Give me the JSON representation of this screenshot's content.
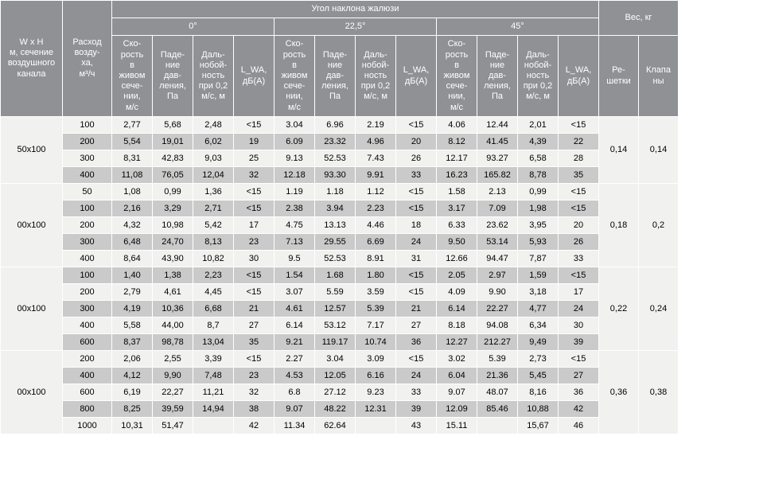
{
  "header": {
    "wh": "W x H\nм, сечение\nвоздушного\nканала",
    "flow": "Расход\nвозду-\nха,\nм³/ч",
    "angle_title": "Угол наклона жалюзи",
    "angles": [
      "0°",
      "22,5°",
      "45°"
    ],
    "subcols": [
      "Ско-\nрость\nв\nживом\nсече-\nнии,\nм/с",
      "Паде-\nние\nдав-\nления,\nПа",
      "Даль-\nнобой-\nность\nпри 0,2\nм/с, м",
      "L_WA,\nдБ(A)"
    ],
    "weight_title": "Вес, кг",
    "weight_cols": [
      "Ре-\nшетки",
      "Клапа\nны"
    ]
  },
  "blocks": [
    {
      "size": "50x100",
      "weights": [
        "0,14",
        "0,14"
      ],
      "rows": [
        {
          "f": "100",
          "a": [
            "2,77",
            "5,68",
            "2,48",
            "<15"
          ],
          "b": [
            "3.04",
            "6.96",
            "2.19",
            "<15"
          ],
          "c": [
            "4.06",
            "12.44",
            "2,01",
            "<15"
          ],
          "cls": "A"
        },
        {
          "f": "200",
          "a": [
            "5,54",
            "19,01",
            "6,02",
            "19"
          ],
          "b": [
            "6.09",
            "23.32",
            "4.96",
            "20"
          ],
          "c": [
            "8.12",
            "41.45",
            "4,39",
            "22"
          ],
          "cls": "B"
        },
        {
          "f": "300",
          "a": [
            "8,31",
            "42,83",
            "9,03",
            "25"
          ],
          "b": [
            "9.13",
            "52.53",
            "7.43",
            "26"
          ],
          "c": [
            "12.17",
            "93.27",
            "6,58",
            "28"
          ],
          "cls": "A"
        },
        {
          "f": "400",
          "a": [
            "11,08",
            "76,05",
            "12,04",
            "32"
          ],
          "b": [
            "12.18",
            "93.30",
            "9.91",
            "33"
          ],
          "c": [
            "16.23",
            "165.82",
            "8,78",
            "35"
          ],
          "cls": "B"
        }
      ]
    },
    {
      "size": "00x100",
      "weights": [
        "0,18",
        "0,2"
      ],
      "rows": [
        {
          "f": "50",
          "a": [
            "1,08",
            "0,99",
            "1,36",
            "<15"
          ],
          "b": [
            "1.19",
            "1.18",
            "1.12",
            "<15"
          ],
          "c": [
            "1.58",
            "2.13",
            "0,99",
            "<15"
          ],
          "cls": "A"
        },
        {
          "f": "100",
          "a": [
            "2,16",
            "3,29",
            "2,71",
            "<15"
          ],
          "b": [
            "2.38",
            "3.94",
            "2.23",
            "<15"
          ],
          "c": [
            "3.17",
            "7.09",
            "1,98",
            "<15"
          ],
          "cls": "B"
        },
        {
          "f": "200",
          "a": [
            "4,32",
            "10,98",
            "5,42",
            "17"
          ],
          "b": [
            "4.75",
            "13.13",
            "4.46",
            "18"
          ],
          "c": [
            "6.33",
            "23.62",
            "3,95",
            "20"
          ],
          "cls": "A"
        },
        {
          "f": "300",
          "a": [
            "6,48",
            "24,70",
            "8,13",
            "23"
          ],
          "b": [
            "7.13",
            "29.55",
            "6.69",
            "24"
          ],
          "c": [
            "9.50",
            "53.14",
            "5,93",
            "26"
          ],
          "cls": "B"
        },
        {
          "f": "400",
          "a": [
            "8,64",
            "43,90",
            "10,82",
            "30"
          ],
          "b": [
            "9.5",
            "52.53",
            "8.91",
            "31"
          ],
          "c": [
            "12.66",
            "94.47",
            "7,87",
            "33"
          ],
          "cls": "A"
        }
      ]
    },
    {
      "size": "00x100",
      "weights": [
        "0,22",
        "0,24"
      ],
      "rows": [
        {
          "f": "100",
          "a": [
            "1,40",
            "1,38",
            "2,23",
            "<15"
          ],
          "b": [
            "1.54",
            "1.68",
            "1.80",
            "<15"
          ],
          "c": [
            "2.05",
            "2.97",
            "1,59",
            "<15"
          ],
          "cls": "B"
        },
        {
          "f": "200",
          "a": [
            "2,79",
            "4,61",
            "4,45",
            "<15"
          ],
          "b": [
            "3.07",
            "5.59",
            "3.59",
            "<15"
          ],
          "c": [
            "4.09",
            "9.90",
            "3,18",
            "17"
          ],
          "cls": "A"
        },
        {
          "f": "300",
          "a": [
            "4,19",
            "10,36",
            "6,68",
            "21"
          ],
          "b": [
            "4.61",
            "12.57",
            "5.39",
            "21"
          ],
          "c": [
            "6.14",
            "22.27",
            "4,77",
            "24"
          ],
          "cls": "B"
        },
        {
          "f": "400",
          "a": [
            "5,58",
            "44,00",
            "8,7",
            "27"
          ],
          "b": [
            "6.14",
            "53.12",
            "7.17",
            "27"
          ],
          "c": [
            "8.18",
            "94.08",
            "6,34",
            "30"
          ],
          "cls": "A"
        },
        {
          "f": "600",
          "a": [
            "8,37",
            "98,78",
            "13,04",
            "35"
          ],
          "b": [
            "9.21",
            "119.17",
            "10.74",
            "36"
          ],
          "c": [
            "12.27",
            "212.27",
            "9,49",
            "39"
          ],
          "cls": "B"
        }
      ]
    },
    {
      "size": "00x100",
      "weights": [
        "0,36",
        "0,38"
      ],
      "rows": [
        {
          "f": "200",
          "a": [
            "2,06",
            "2,55",
            "3,39",
            "<15"
          ],
          "b": [
            "2.27",
            "3.04",
            "3.09",
            "<15"
          ],
          "c": [
            "3.02",
            "5.39",
            "2,73",
            "<15"
          ],
          "cls": "A"
        },
        {
          "f": "400",
          "a": [
            "4,12",
            "9,90",
            "7,48",
            "23"
          ],
          "b": [
            "4.53",
            "12.05",
            "6.16",
            "24"
          ],
          "c": [
            "6.04",
            "21.36",
            "5,45",
            "27"
          ],
          "cls": "B"
        },
        {
          "f": "600",
          "a": [
            "6,19",
            "22,27",
            "11,21",
            "32"
          ],
          "b": [
            "6.8",
            "27.12",
            "9.23",
            "33"
          ],
          "c": [
            "9.07",
            "48.07",
            "8,16",
            "36"
          ],
          "cls": "A"
        },
        {
          "f": "800",
          "a": [
            "8,25",
            "39,59",
            "14,94",
            "38"
          ],
          "b": [
            "9.07",
            "48.22",
            "12.31",
            "39"
          ],
          "c": [
            "12.09",
            "85.46",
            "10,88",
            "42"
          ],
          "cls": "B"
        },
        {
          "f": "1000",
          "a": [
            "10,31",
            "51,47",
            "",
            "42"
          ],
          "b": [
            "11.34",
            "62.64",
            "",
            "43"
          ],
          "c": [
            "15.11",
            "",
            "15,67",
            "46"
          ],
          "cls": "A"
        }
      ]
    }
  ]
}
